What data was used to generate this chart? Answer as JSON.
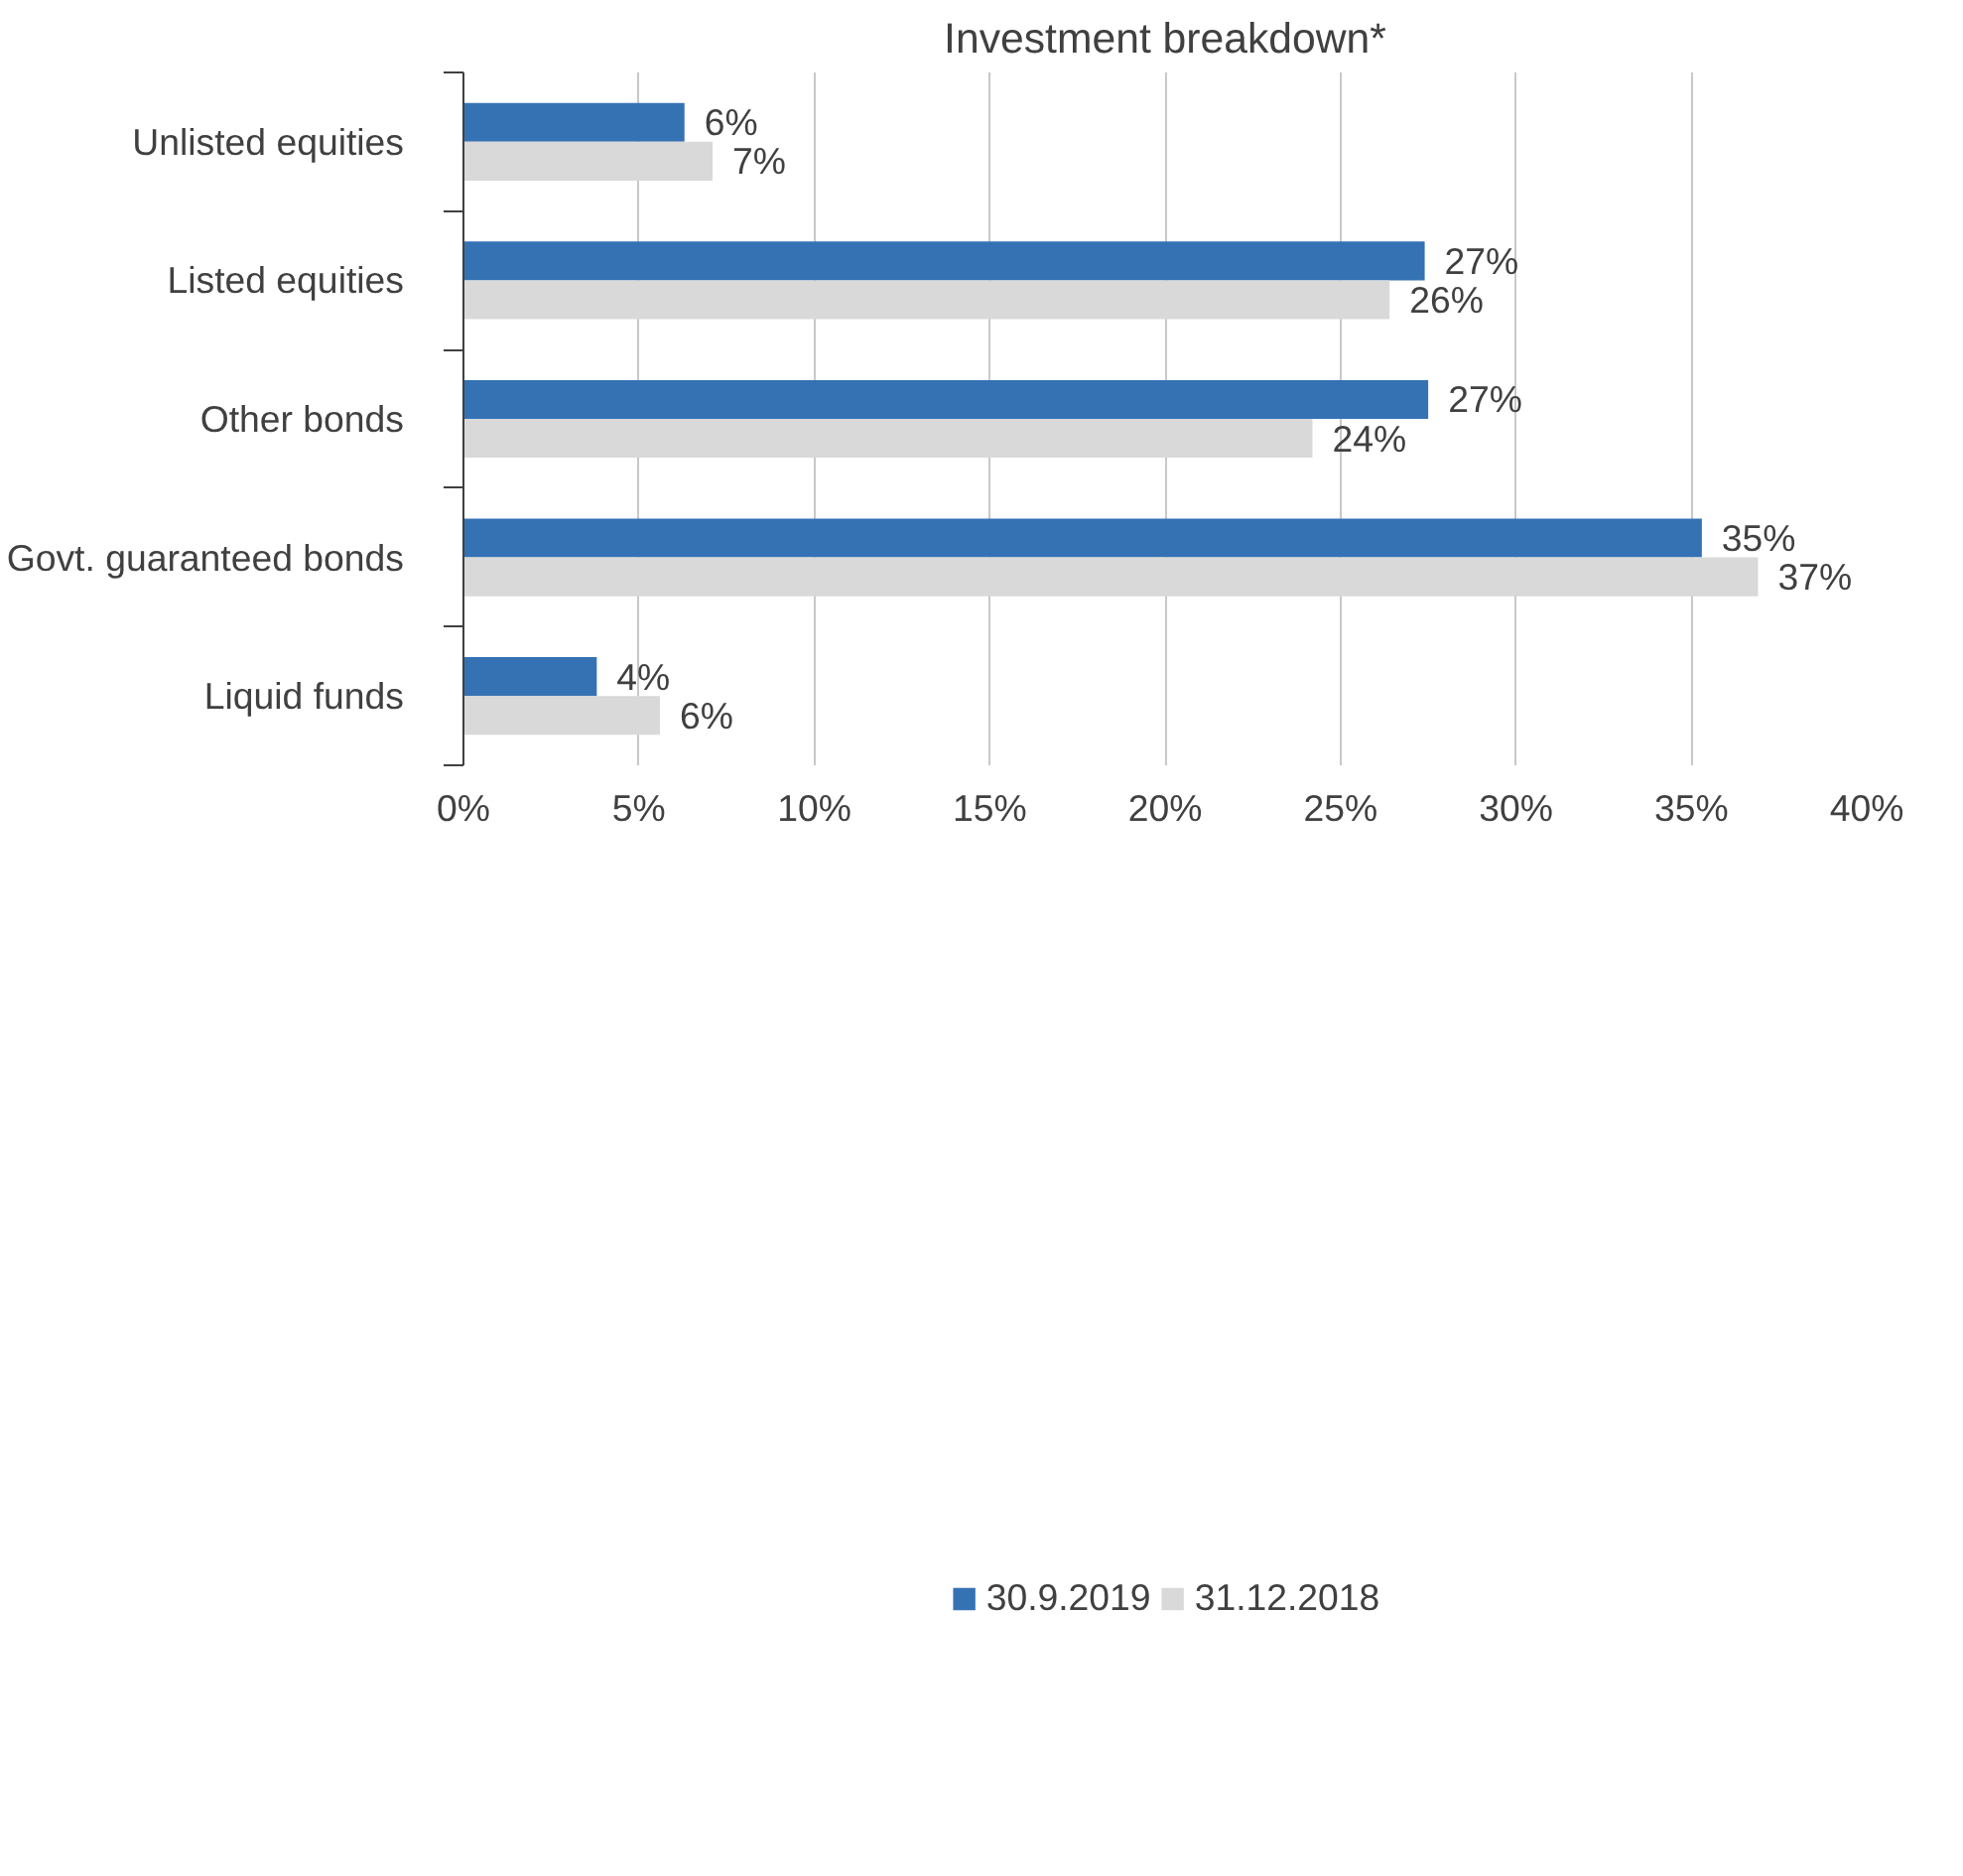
{
  "chart_data": {
    "type": "bar",
    "orientation": "horizontal",
    "title": "Investment breakdown*",
    "categories": [
      "Unlisted equities",
      "Listed equities",
      "Other bonds",
      "Govt. guaranteed bonds",
      "Liquid funds"
    ],
    "series": [
      {
        "name": "30.9.2019",
        "color": "#3572b4",
        "values": [
          6.3,
          27.4,
          27.5,
          35.3,
          3.8
        ],
        "value_labels": [
          "6%",
          "27%",
          "27%",
          "35%",
          "4%"
        ]
      },
      {
        "name": "31.12.2018",
        "color": "#d9d9d9",
        "values": [
          7.1,
          26.4,
          24.2,
          36.9,
          5.6
        ],
        "value_labels": [
          "7%",
          "26%",
          "24%",
          "37%",
          "6%"
        ]
      }
    ],
    "xlim": [
      0,
      40
    ],
    "xticks": [
      {
        "value": 0,
        "label": "0%"
      },
      {
        "value": 5,
        "label": "5%"
      },
      {
        "value": 10,
        "label": "10%"
      },
      {
        "value": 15,
        "label": "15%"
      },
      {
        "value": 20,
        "label": "20%"
      },
      {
        "value": 25,
        "label": "25%"
      },
      {
        "value": 30,
        "label": "30%"
      },
      {
        "value": 35,
        "label": "35%"
      },
      {
        "value": 40,
        "label": "40%"
      }
    ],
    "grid": "x",
    "legend": "bottom"
  }
}
